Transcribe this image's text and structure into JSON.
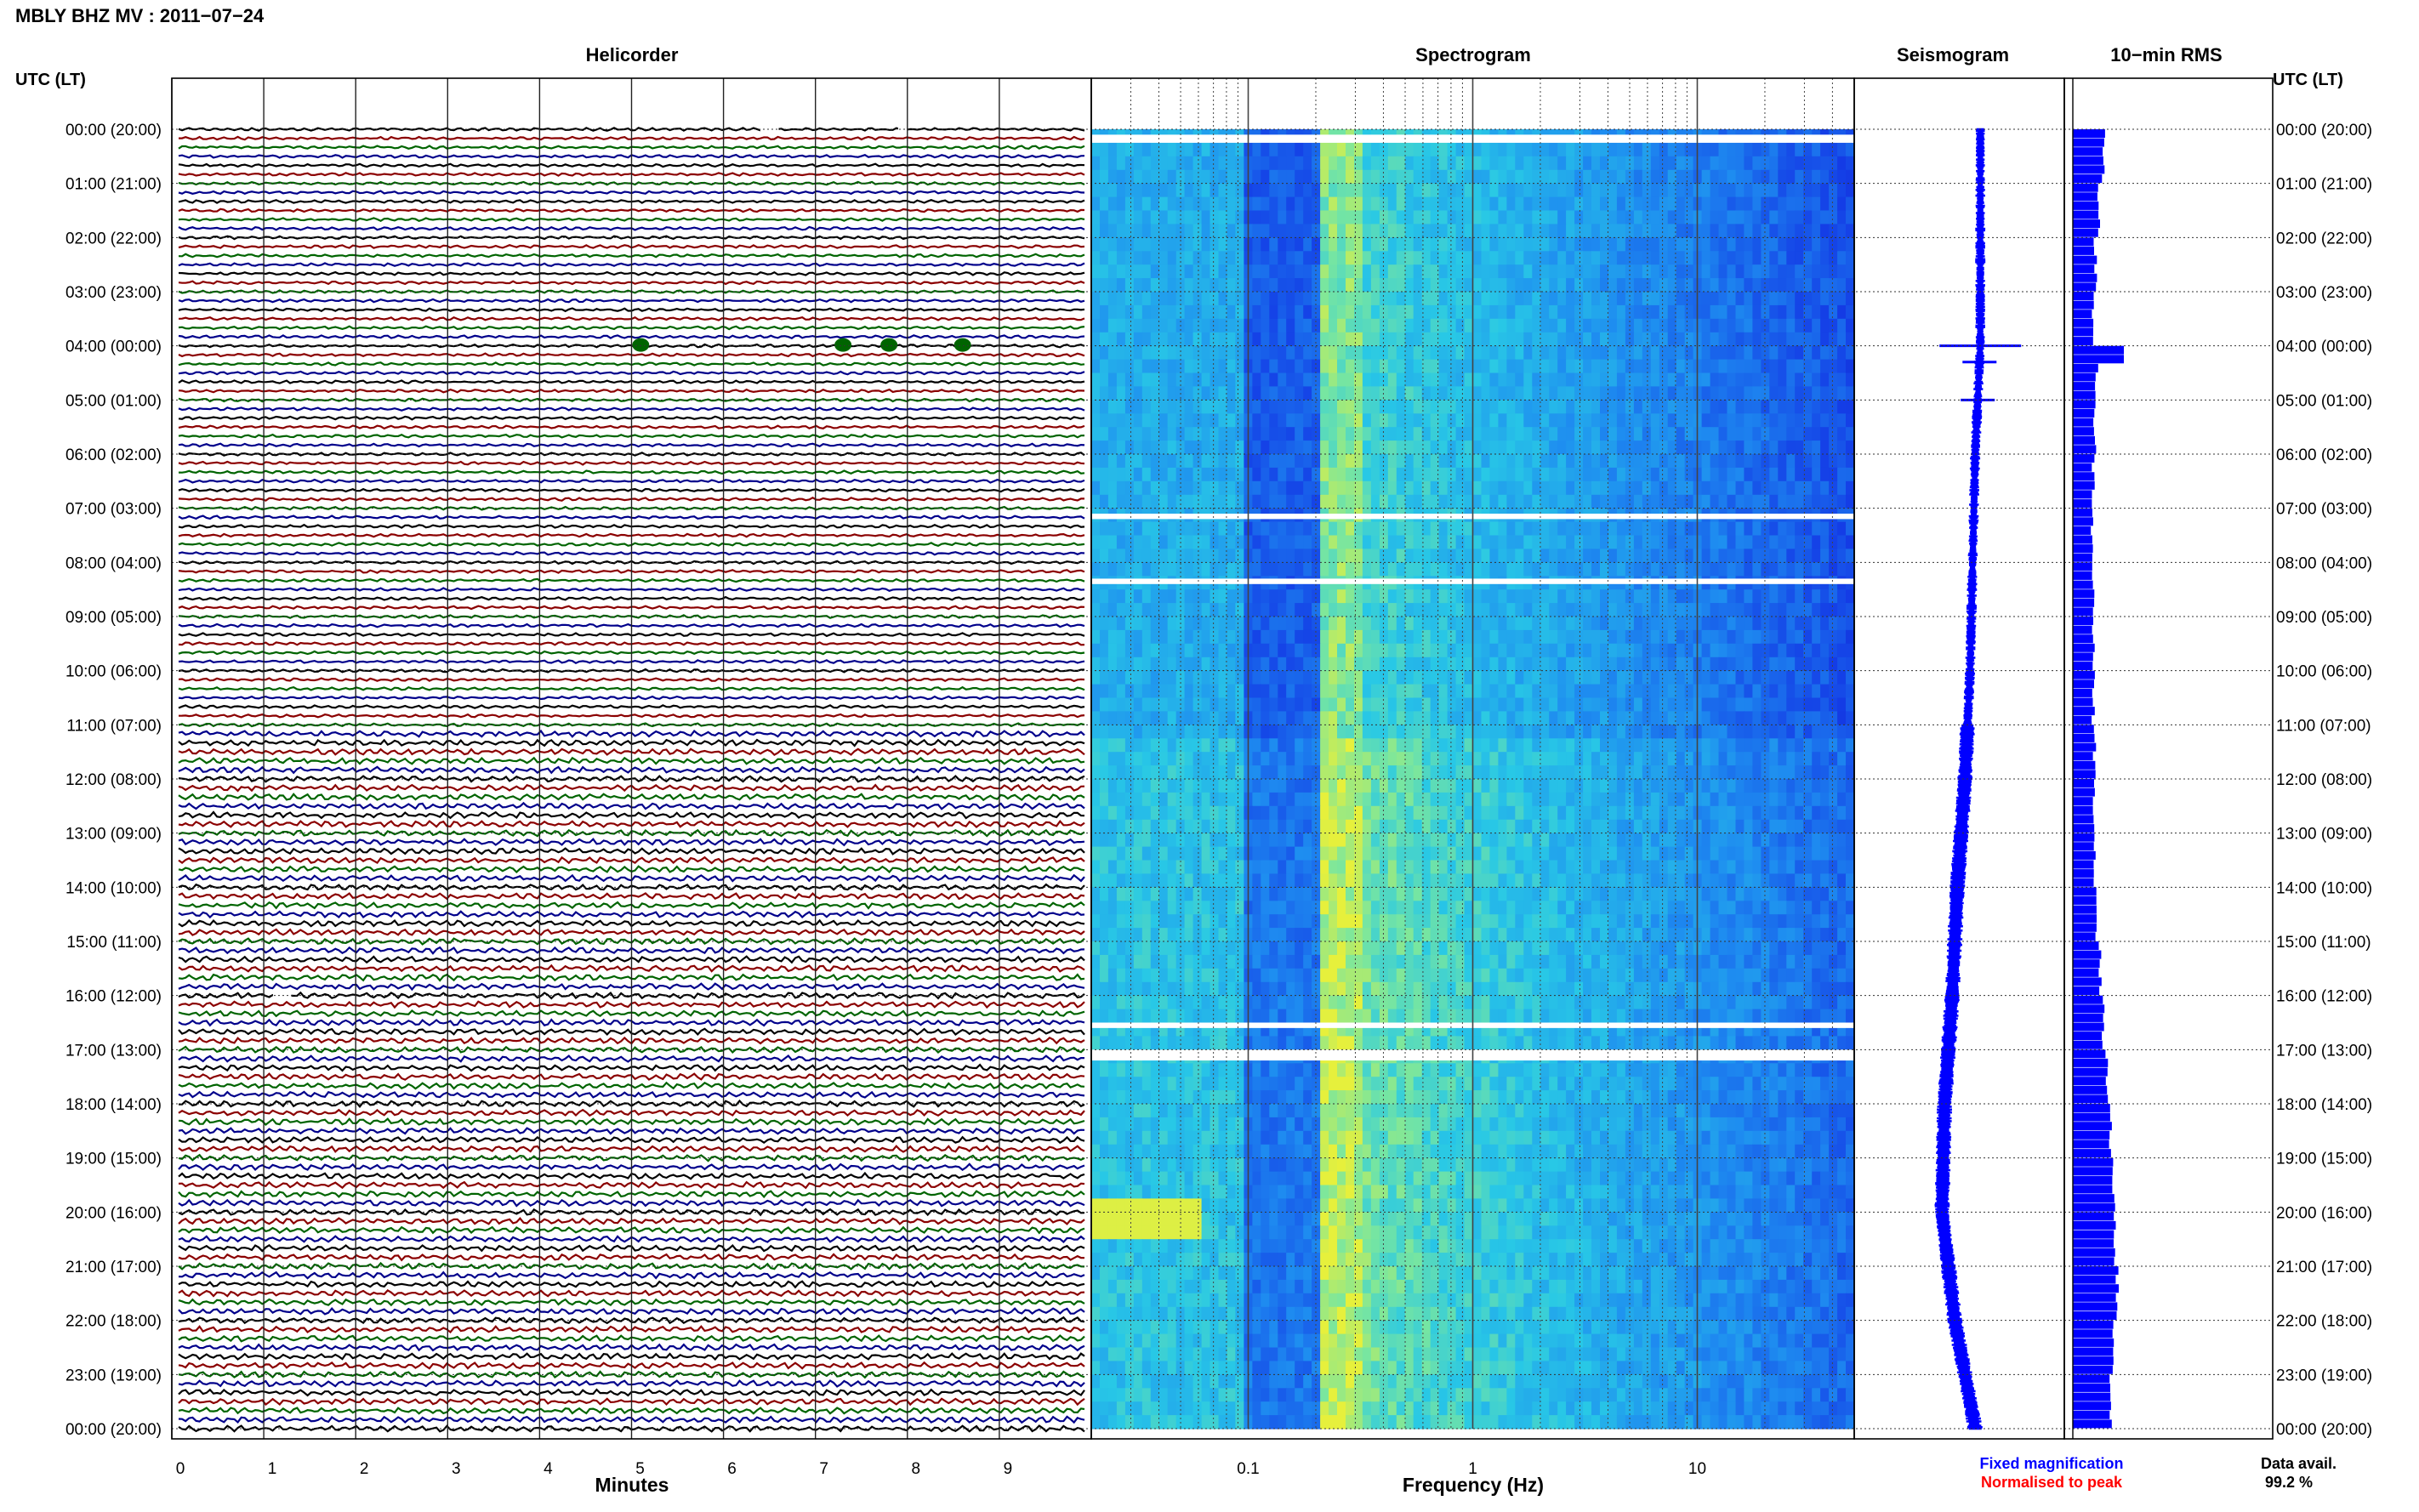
{
  "page": {
    "title": "MBLY BHZ MV : 2011−07−24"
  },
  "panels": {
    "helicorder": "Helicorder",
    "spectrogram": "Spectrogram",
    "seismogram": "Seismogram",
    "rms": "10−min RMS"
  },
  "axes": {
    "left_header": "UTC (LT)",
    "right_header": "UTC (LT)",
    "x_label_helicorder": "Minutes",
    "x_label_spectrogram": "Frequency (Hz)"
  },
  "legend": {
    "fixed": "Fixed magnification",
    "normalised": "Normalised to peak",
    "fixed_color": "#0000ff",
    "normalised_color": "#ff0000"
  },
  "availability": {
    "label": "Data avail.",
    "value": "99.2 %"
  },
  "colors": {
    "trace_cycle": [
      "#000000",
      "#8b0000",
      "#006400",
      "#00008b"
    ],
    "seismogram": "#0000ff",
    "rms": "#0000ff"
  },
  "chart_data": [
    {
      "type": "line",
      "panel": "Helicorder",
      "xlabel": "Minutes",
      "xlim": [
        0,
        10
      ],
      "x_ticks": [
        "0",
        "1",
        "2",
        "3",
        "4",
        "5",
        "6",
        "7",
        "8",
        "9"
      ],
      "y_ticks": [
        "00:00 (20:00)",
        "01:00 (21:00)",
        "02:00 (22:00)",
        "03:00 (23:00)",
        "04:00 (00:00)",
        "05:00 (01:00)",
        "06:00 (02:00)",
        "07:00 (03:00)",
        "08:00 (04:00)",
        "09:00 (05:00)",
        "10:00 (06:00)",
        "11:00 (07:00)",
        "12:00 (08:00)",
        "13:00 (09:00)",
        "14:00 (10:00)",
        "15:00 (11:00)",
        "16:00 (12:00)",
        "17:00 (13:00)",
        "18:00 (14:00)",
        "19:00 (15:00)",
        "20:00 (16:00)",
        "21:00 (17:00)",
        "22:00 (18:00)",
        "23:00 (19:00)",
        "00:00 (20:00)"
      ],
      "traces_per_hour": 6,
      "hours": 24,
      "events": [
        {
          "hour": 4,
          "minute": 5.1
        },
        {
          "hour": 4,
          "minute": 7.3
        },
        {
          "hour": 4,
          "minute": 7.8
        },
        {
          "hour": 4,
          "minute": 8.6
        }
      ],
      "gaps": [
        {
          "hour": 0,
          "minute_start": 6.4,
          "minute_end": 6.6
        },
        {
          "hour": 0,
          "minute_start": 7.9,
          "minute_end": 8.0
        },
        {
          "hour": 16,
          "minute_start": 1.1,
          "minute_end": 1.3
        }
      ]
    },
    {
      "type": "heatmap",
      "panel": "Spectrogram",
      "xlabel": "Frequency (Hz)",
      "xscale": "log",
      "xlim": [
        0.02,
        50
      ],
      "x_ticks": [
        "0.1",
        "1",
        "10"
      ],
      "gaps_hours": [
        [
          0.1,
          0.25
        ],
        [
          7.1,
          7.2
        ],
        [
          8.3,
          8.4
        ],
        [
          16.5,
          16.6
        ],
        [
          17.0,
          17.2
        ]
      ]
    },
    {
      "type": "line",
      "panel": "Seismogram",
      "hours": [
        0,
        2,
        4,
        6,
        8,
        10,
        12,
        14,
        16,
        18,
        20,
        22,
        24
      ],
      "offset": [
        0.0,
        0.0,
        0.0,
        -0.1,
        -0.15,
        -0.2,
        -0.3,
        -0.45,
        -0.55,
        -0.7,
        -0.75,
        -0.5,
        -0.1
      ],
      "spike_hours": [
        4.0,
        4.3,
        5.0
      ]
    },
    {
      "type": "bar",
      "panel": "10−min RMS",
      "hours": 24,
      "values": [
        0.45,
        0.38,
        0.33,
        0.3,
        0.35,
        0.32,
        0.3,
        0.28,
        0.3,
        0.3,
        0.3,
        0.32,
        0.32,
        0.32,
        0.35,
        0.4,
        0.45,
        0.5,
        0.55,
        0.6,
        0.62,
        0.65,
        0.6,
        0.55
      ]
    }
  ]
}
